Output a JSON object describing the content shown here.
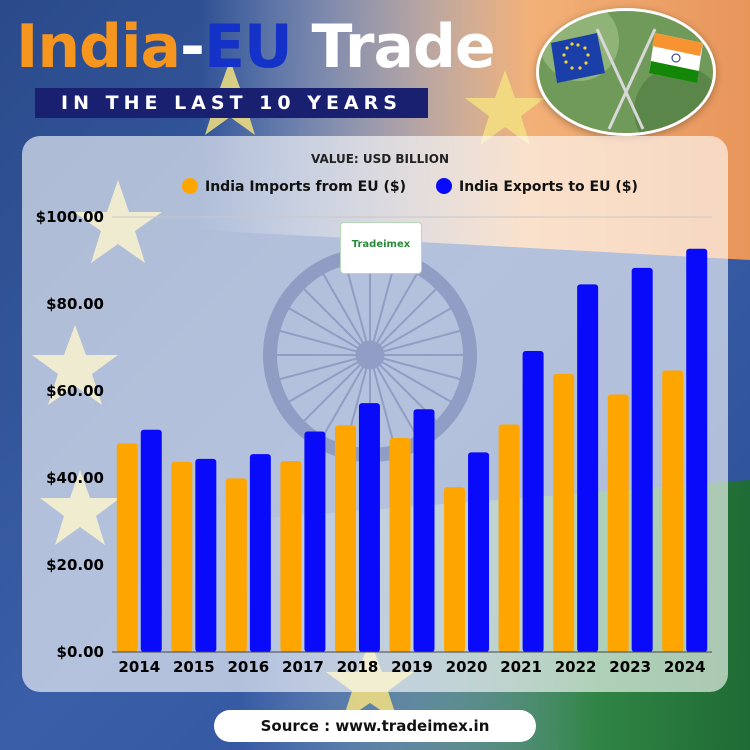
{
  "header": {
    "title_parts": [
      "India",
      "-",
      "EU",
      " Trade"
    ],
    "subtitle": "IN THE LAST 10 YEARS"
  },
  "colors": {
    "imports": "#ffa500",
    "exports": "#0a0afa",
    "title_orange": "#f7961e",
    "title_blue": "#1432c8",
    "subtitle_bg": "#1a2070"
  },
  "icons": {
    "flags": "crossed-flags-eu-india-icon",
    "chakra": "ashoka-chakra-icon",
    "logo": "tradeimex-logo"
  },
  "logo": {
    "text": "Tradeimex"
  },
  "chart_data": {
    "type": "bar",
    "subtitle": "VALUE: USD BILLION",
    "categories": [
      "2014",
      "2015",
      "2016",
      "2017",
      "2018",
      "2019",
      "2020",
      "2021",
      "2022",
      "2023",
      "2024"
    ],
    "series": [
      {
        "name": "India Imports from EU ($)",
        "values": [
          48.0,
          43.7,
          39.9,
          43.9,
          52.1,
          49.2,
          37.9,
          52.3,
          63.9,
          59.2,
          64.7
        ]
      },
      {
        "name": "India Exports to EU ($)",
        "values": [
          51.1,
          44.4,
          45.5,
          50.7,
          57.2,
          55.8,
          45.9,
          69.2,
          84.5,
          88.3,
          92.7
        ]
      }
    ],
    "ylim": [
      0,
      100
    ],
    "yticks": [
      0,
      20,
      40,
      60,
      80,
      100
    ],
    "ytick_labels": [
      "$0.00",
      "$20.00",
      "$40.00",
      "$60.00",
      "$80.00",
      "$100.00"
    ],
    "legend_position": "top-center",
    "grid": false
  },
  "footer": {
    "source": "Source : www.tradeimex.in"
  }
}
